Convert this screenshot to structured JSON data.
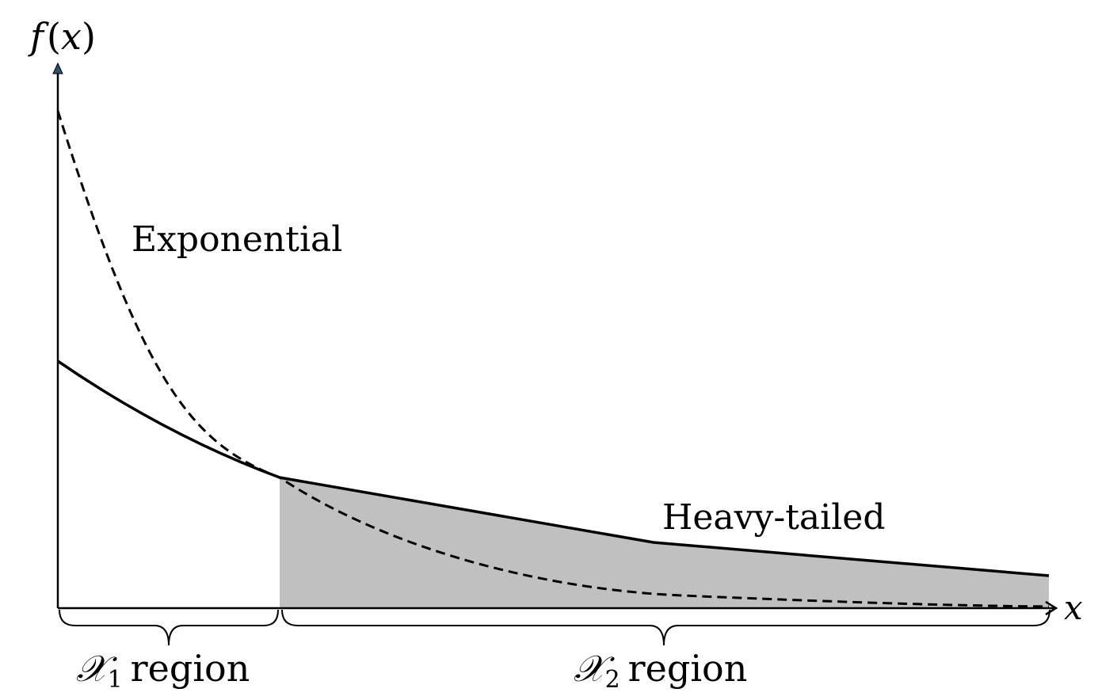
{
  "axes": {
    "y_label_f": "f",
    "y_label_open": "(",
    "y_label_var": "x",
    "y_label_close": ")",
    "x_label": "x"
  },
  "curves": {
    "exponential_label": "Exponential",
    "heavy_tailed_label": "Heavy-tailed",
    "exponential_style": "dashed",
    "heavy_tailed_style": "solid"
  },
  "regions": {
    "region1": {
      "symbol": "𝒳",
      "subscript": "1",
      "word": "region"
    },
    "region2": {
      "symbol": "𝒳",
      "subscript": "2",
      "word": "region"
    },
    "shaded_fill": "#c0c0c0"
  },
  "colors": {
    "line": "#000000",
    "arrowhead_y": "#2f4f6f"
  }
}
